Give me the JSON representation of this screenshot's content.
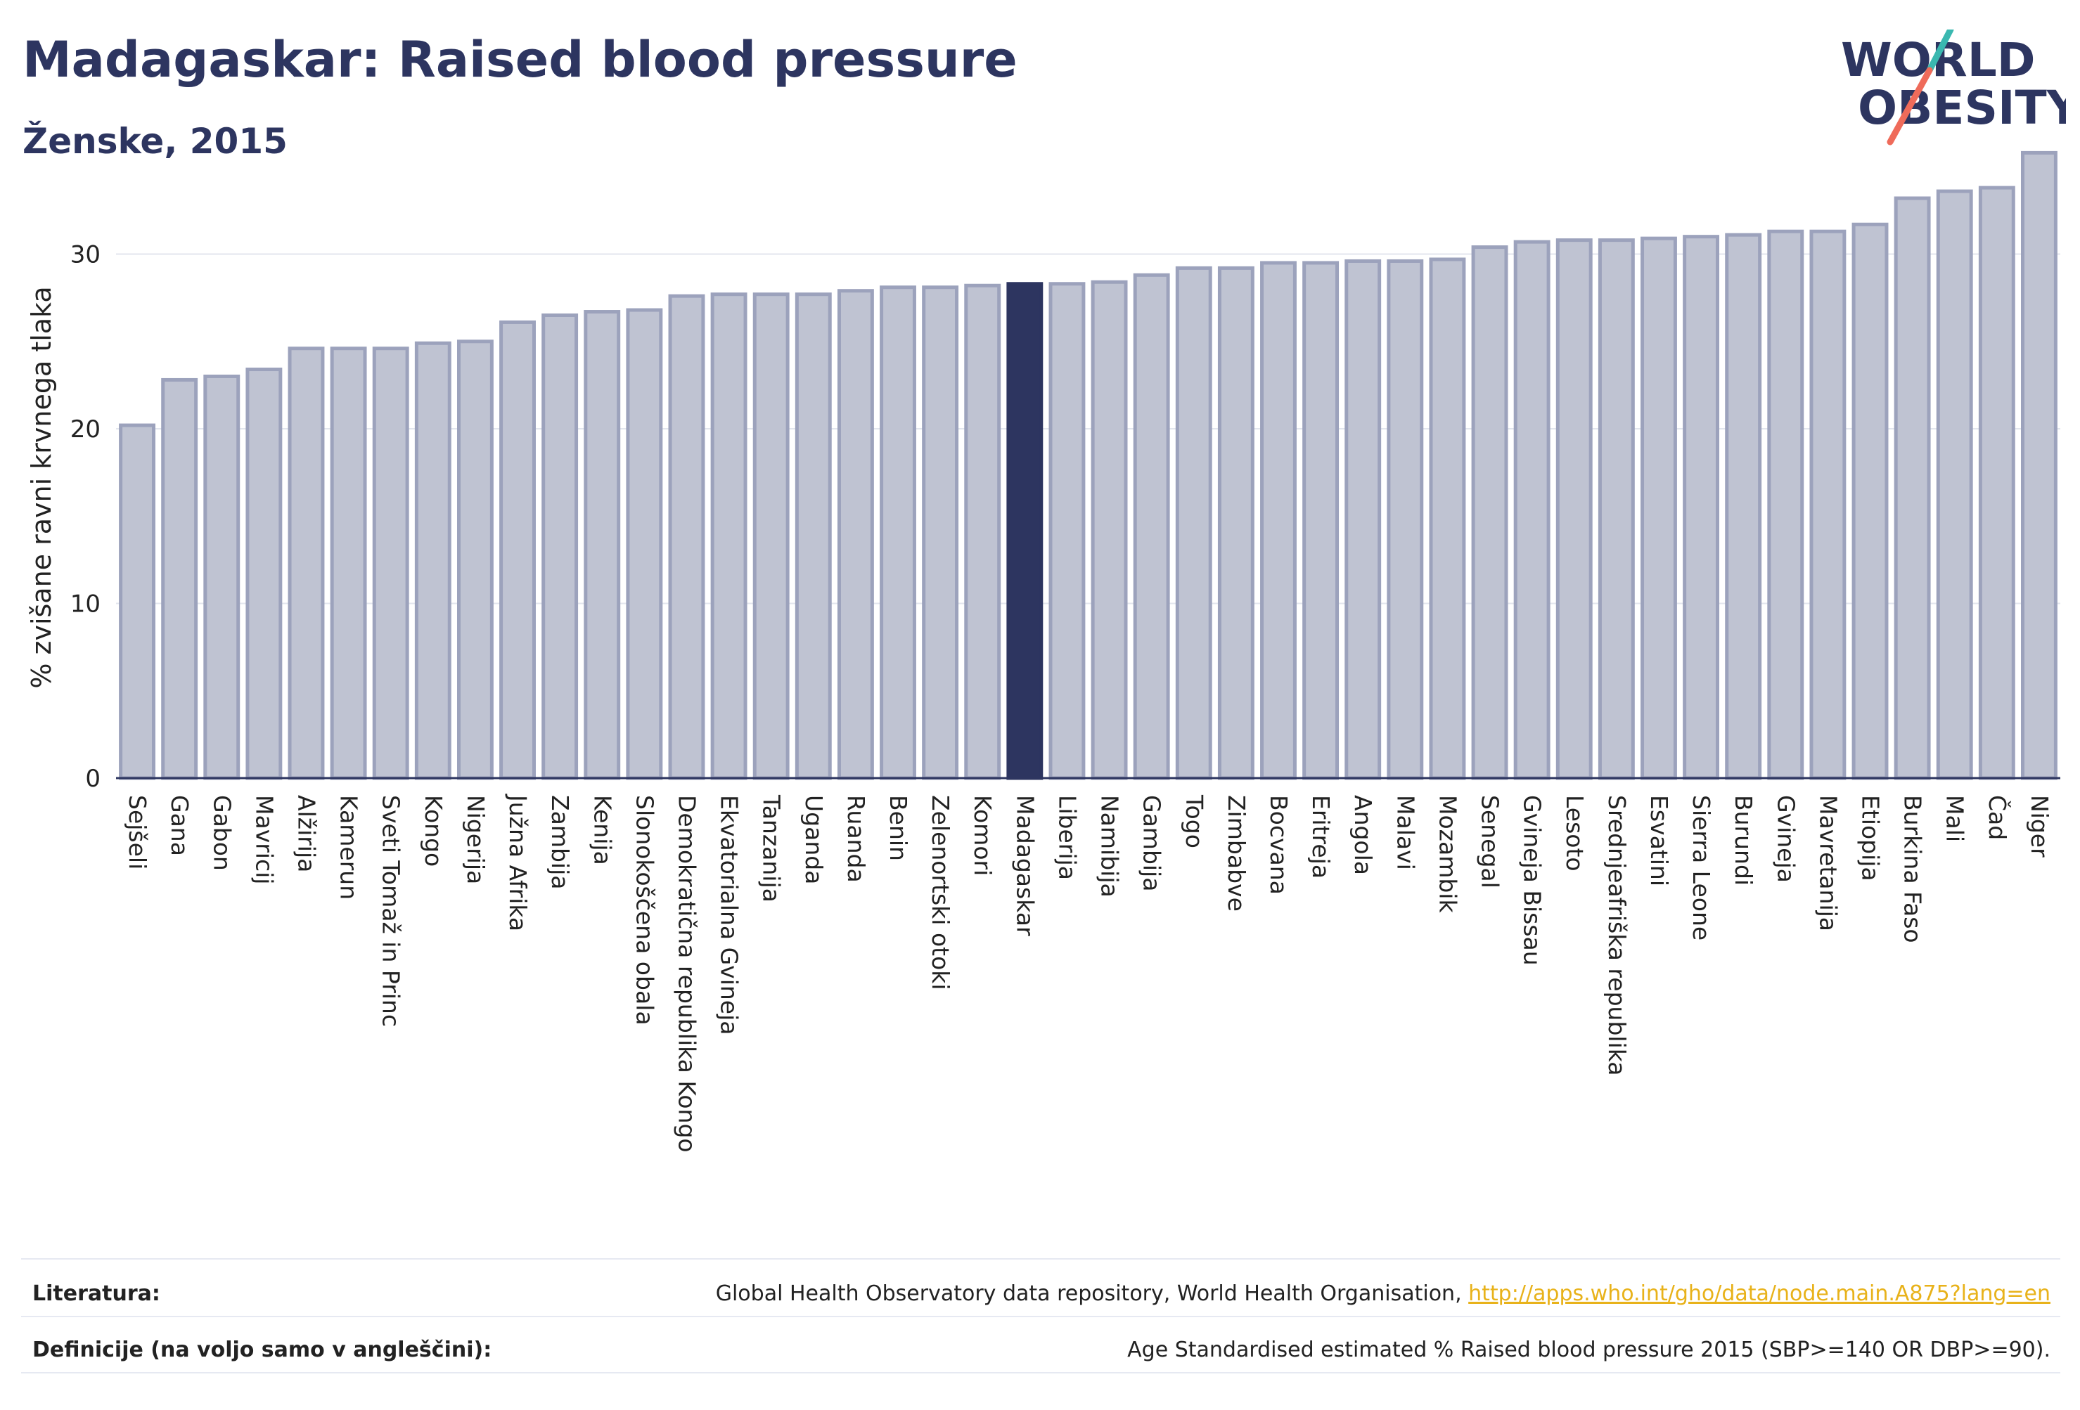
{
  "header": {
    "title": "Madagaskar: Raised blood pressure",
    "subtitle": "Ženske, 2015"
  },
  "logo": {
    "line1": "WORLD",
    "line2": "OBESITY",
    "colors": {
      "text": "#2d3560",
      "slash_teal": "#3ab8b0",
      "slash_coral": "#ef6b5a"
    }
  },
  "chart_data": {
    "type": "bar",
    "title": "Madagaskar: Raised blood pressure",
    "subtitle": "Ženske, 2015",
    "xlabel": "",
    "ylabel": "% zvišane ravni krvnega tlaka",
    "ylim": [
      0,
      36.5
    ],
    "yticks": [
      0,
      10,
      20,
      30
    ],
    "grid": true,
    "highlight": "Madagaskar",
    "colors": {
      "bar": "#bfc3d2",
      "bar_edge": "#9ca2bc",
      "highlight": "#2d3560",
      "grid": "#e3e6ee",
      "axis": "#2d3560"
    },
    "categories": [
      "Sejšeli",
      "Gana",
      "Gabon",
      "Mavricij",
      "Alžirija",
      "Kamerun",
      "Sveti Tomaž in Princ",
      "Kongo",
      "Nigerija",
      "Južna Afrika",
      "Zambija",
      "Kenija",
      "Slonokoščena obala",
      "Demokratična republika Kongo",
      "Ekvatorialna Gvineja",
      "Tanzanija",
      "Uganda",
      "Ruanda",
      "Benin",
      "Zelenortski otoki",
      "Komori",
      "Madagaskar",
      "Liberija",
      "Namibija",
      "Gambija",
      "Togo",
      "Zimbabve",
      "Bocvana",
      "Eritreja",
      "Angola",
      "Malavi",
      "Mozambik",
      "Senegal",
      "Gvineja Bissau",
      "Lesoto",
      "Srednjeafriška republika",
      "Esvatini",
      "Sierra Leone",
      "Burundi",
      "Gvineja",
      "Mavretanija",
      "Etiopija",
      "Burkina Faso",
      "Mali",
      "Čad",
      "Niger"
    ],
    "values": [
      20.2,
      22.8,
      23.0,
      23.4,
      24.6,
      24.6,
      24.6,
      24.9,
      25.0,
      26.1,
      26.5,
      26.7,
      26.8,
      27.6,
      27.7,
      27.7,
      27.7,
      27.9,
      28.1,
      28.1,
      28.2,
      28.3,
      28.3,
      28.4,
      28.8,
      29.2,
      29.2,
      29.5,
      29.5,
      29.6,
      29.6,
      29.7,
      30.4,
      30.7,
      30.8,
      30.8,
      30.9,
      31.0,
      31.1,
      31.3,
      31.3,
      31.7,
      33.2,
      33.6,
      33.8,
      35.8
    ]
  },
  "footer": {
    "references_label": "Literatura:",
    "references_text": "Global Health Observatory data repository, World Health Organisation, ",
    "references_link": "http://apps.who.int/gho/data/node.main.A875?lang=en",
    "definitions_label": "Definicije (na voljo samo v angleščini):",
    "definitions_text": "Age Standardised estimated % Raised blood pressure 2015 (SBP>=140 OR DBP>=90)."
  }
}
